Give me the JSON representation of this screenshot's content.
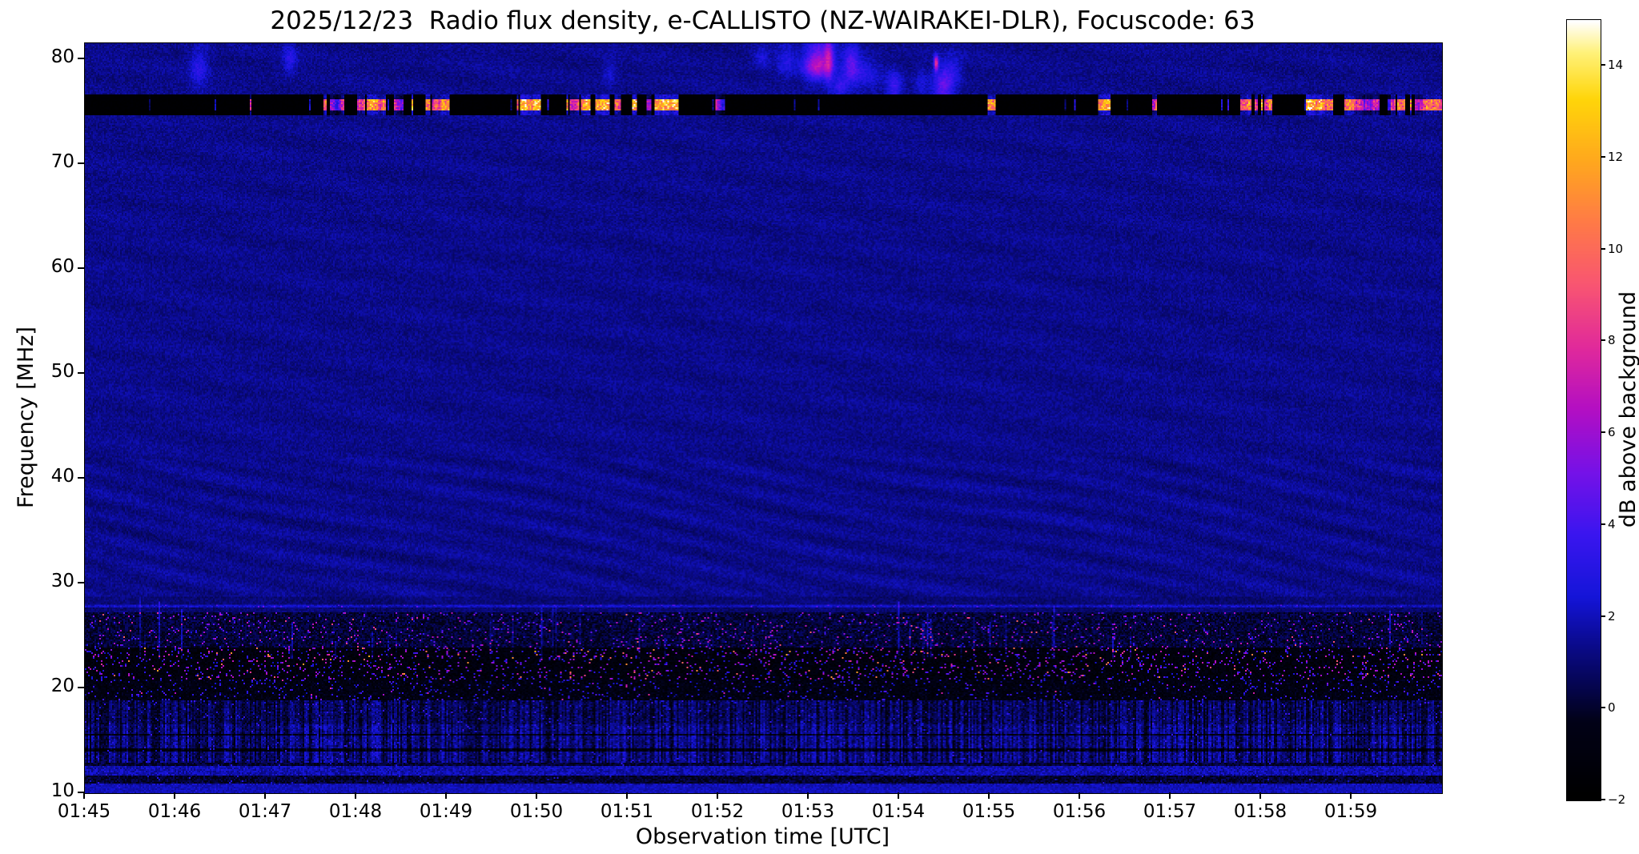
{
  "chart_data": {
    "type": "heatmap",
    "title": "2025/12/23  Radio flux density, e-CALLISTO (NZ-WAIRAKEI-DLR), Focuscode: 63",
    "date": "2025/12/23",
    "instrument": "e-CALLISTO",
    "station": "NZ-WAIRAKEI-DLR",
    "focuscode": "63",
    "xlabel": "Observation time [UTC]",
    "ylabel": "Frequency [MHz]",
    "x_ticks": [
      "01:45",
      "01:46",
      "01:47",
      "01:48",
      "01:49",
      "01:50",
      "01:51",
      "01:52",
      "01:53",
      "01:54",
      "01:55",
      "01:56",
      "01:57",
      "01:58",
      "01:59"
    ],
    "x_span_minutes": 15,
    "y_ticks": [
      10,
      20,
      30,
      40,
      50,
      60,
      70,
      80
    ],
    "y_range_mhz": [
      10,
      81.5
    ],
    "colorbar": {
      "label": "dB above background",
      "range_db": [
        -2,
        15
      ],
      "ticks": [
        {
          "label": "−2",
          "value": -2
        },
        {
          "label": "0",
          "value": 0
        },
        {
          "label": "2",
          "value": 2
        },
        {
          "label": "4",
          "value": 4
        },
        {
          "label": "6",
          "value": 6
        },
        {
          "label": "8",
          "value": 8
        },
        {
          "label": "10",
          "value": 10
        },
        {
          "label": "12",
          "value": 12
        },
        {
          "label": "14",
          "value": 14
        }
      ],
      "colormap_stops": [
        {
          "t": 0.0,
          "color": "#000000"
        },
        {
          "t": 0.1,
          "color": "#020218"
        },
        {
          "t": 0.14,
          "color": "#05054a"
        },
        {
          "t": 0.2,
          "color": "#0b0b8f"
        },
        {
          "t": 0.26,
          "color": "#1515d9"
        },
        {
          "t": 0.34,
          "color": "#3b16f0"
        },
        {
          "t": 0.42,
          "color": "#7612e8"
        },
        {
          "t": 0.5,
          "color": "#b30fc4"
        },
        {
          "t": 0.58,
          "color": "#e12a9c"
        },
        {
          "t": 0.66,
          "color": "#f95573"
        },
        {
          "t": 0.74,
          "color": "#ff7a48"
        },
        {
          "t": 0.82,
          "color": "#ffa81e"
        },
        {
          "t": 0.9,
          "color": "#ffd60a"
        },
        {
          "t": 0.96,
          "color": "#fff27a"
        },
        {
          "t": 1.0,
          "color": "#ffffff"
        }
      ]
    },
    "features": {
      "background_db": [
        0.85,
        1.8
      ],
      "rfi_band": {
        "freq_mhz": [
          74.6,
          76.6
        ],
        "core_mhz": [
          75.05,
          76.15
        ],
        "floor_db": -1.9,
        "burst_db": [
          7,
          15
        ],
        "description": "intermittent strong broadcast RFI band: saturated white/yellow bursts over a black floor across the whole time span"
      },
      "upper_patches": {
        "freq_mhz": [
          77.0,
          80.8
        ],
        "db": [
          1.5,
          4
        ],
        "busy_time_minutes": [
          8.0,
          9.6
        ],
        "description": "faint blue emission patches above the RFI band, densest near 01:53-01:54, one bright pink point near 01:54.4 at ~79.6 MHz"
      },
      "line_28mhz": {
        "freq_mhz": 27.9,
        "db": 1.6
      },
      "low_bands": [
        {
          "freq_mhz": [
            23.8,
            27.2
          ],
          "base_db": [
            -0.7,
            0.9
          ],
          "speckle_prob": 0.05,
          "speckle_db": [
            2.5,
            7
          ],
          "hot_prob": 0.004,
          "hot_db": [
            7,
            10
          ]
        },
        {
          "freq_mhz": [
            20.8,
            23.8
          ],
          "base_db": [
            -1.9,
            -0.3
          ],
          "speckle_prob": 0.09,
          "speckle_db": [
            1.5,
            7
          ],
          "hot_prob": 0.01,
          "hot_db": [
            7,
            12
          ]
        },
        {
          "freq_mhz": [
            18.9,
            20.8
          ],
          "base_db": [
            -1.6,
            0.0
          ],
          "speckle_prob": 0.06,
          "speckle_db": [
            1.5,
            4.5
          ],
          "hot_prob": 0.003,
          "hot_db": [
            5,
            8
          ]
        },
        {
          "freq_mhz": [
            16.6,
            18.9
          ],
          "base_db": [
            -0.3,
            1.3
          ],
          "speckle_prob": 0.025,
          "speckle_db": [
            2,
            4
          ],
          "striate": 0.9
        },
        {
          "freq_mhz": [
            12.9,
            16.6
          ],
          "base_db": [
            0.2,
            1.8
          ],
          "speckle_prob": 0.015,
          "speckle_db": [
            2,
            4
          ],
          "striate": 1.1,
          "dark_rows_mhz": [
            14.15,
            15.55
          ]
        },
        {
          "freq_mhz": [
            10.0,
            12.9
          ],
          "base_db": [
            0.3,
            1.9
          ],
          "speckle_prob": 0.01,
          "speckle_db": [
            2,
            3.5
          ],
          "row_pattern": true
        }
      ]
    }
  }
}
